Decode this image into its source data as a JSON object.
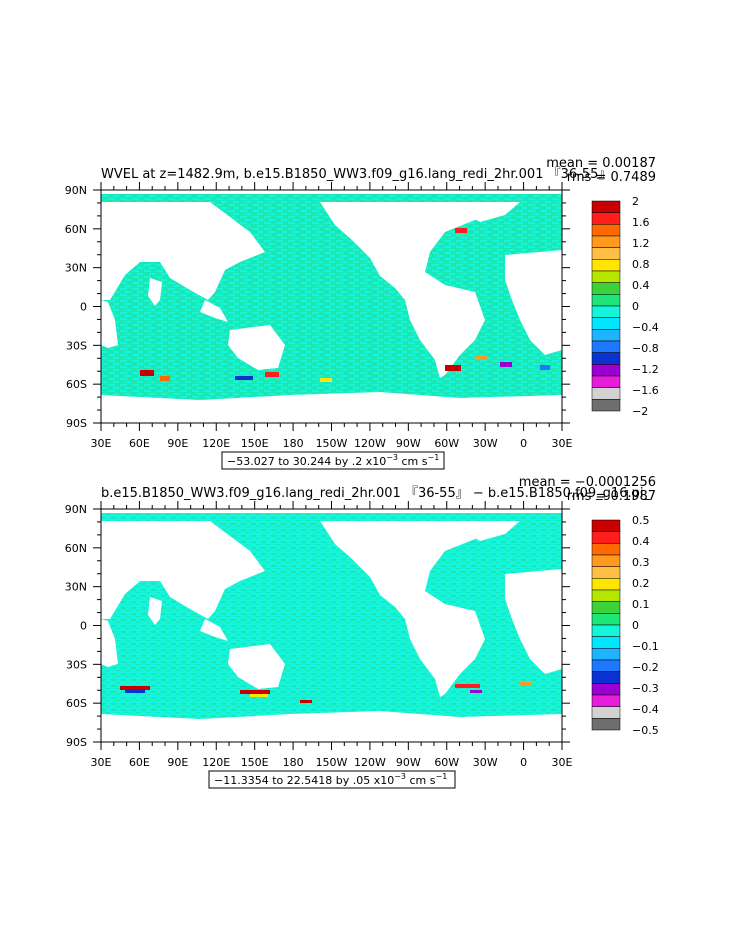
{
  "colors": {
    "land": "#ffffff",
    "ocean_base": "#1de7b0",
    "ocean_alt": "#14f5e0",
    "frame": "#000000"
  },
  "land_icon": "continent-shape",
  "chart_data": [
    {
      "type": "heatmap",
      "title": "WVEL at z=1482.9m, b.e15.B1850_WW3.f09_g16.lang_redi_2hr.001 『36-55』",
      "stats": {
        "mean": "mean = 0.00187",
        "rms": "rms = 0.7489"
      },
      "x_ticks": [
        "30E",
        "60E",
        "90E",
        "120E",
        "150E",
        "180",
        "150W",
        "120W",
        "90W",
        "60W",
        "30W",
        "0",
        "30E"
      ],
      "y_ticks": [
        "90N",
        "60N",
        "30N",
        "0",
        "30S",
        "60S",
        "90S"
      ],
      "xlim": [
        30,
        390
      ],
      "ylim": [
        -90,
        90
      ],
      "range_label": {
        "text": "−53.027 to 30.244 by .2 x10",
        "exp": "−3",
        "unit": " cm s",
        "unit_exp": "−1"
      },
      "colorbar": {
        "labels": [
          "2",
          "1.6",
          "1.2",
          "0.8",
          "0.4",
          "0",
          "−0.4",
          "−0.8",
          "−1.2",
          "−1.6",
          "−2"
        ],
        "colors": [
          "#c80000",
          "#ff1e1e",
          "#ff6a00",
          "#ff9a1e",
          "#ffbf46",
          "#ffe600",
          "#b4e600",
          "#3cd23c",
          "#1ee678",
          "#14f5dc",
          "#00e6ff",
          "#1eb4ff",
          "#1e78ff",
          "#0a32d2",
          "#9b00d2",
          "#e61edc",
          "#d2d2d2",
          "#6e6e6e"
        ]
      }
    },
    {
      "type": "heatmap",
      "title": "b.e15.B1850_WW3.f09_g16.lang_redi_2hr.001 『36-55』 − b.e15.B1850.f09_g16.pi_",
      "stats": {
        "mean": "mean = −0.0001256",
        "rms": "rms = 0.1987"
      },
      "x_ticks": [
        "30E",
        "60E",
        "90E",
        "120E",
        "150E",
        "180",
        "150W",
        "120W",
        "90W",
        "60W",
        "30W",
        "0",
        "30E"
      ],
      "y_ticks": [
        "90N",
        "60N",
        "30N",
        "0",
        "30S",
        "60S",
        "90S"
      ],
      "xlim": [
        30,
        390
      ],
      "ylim": [
        -90,
        90
      ],
      "range_label": {
        "text": "−11.3354 to 22.5418 by .05 x10",
        "exp": "−3",
        "unit": " cm s",
        "unit_exp": "−1"
      },
      "colorbar": {
        "labels": [
          "0.5",
          "0.4",
          "0.3",
          "0.2",
          "0.1",
          "0",
          "−0.1",
          "−0.2",
          "−0.3",
          "−0.4",
          "−0.5"
        ],
        "colors": [
          "#c80000",
          "#ff1e1e",
          "#ff6a00",
          "#ff9a1e",
          "#ffbf46",
          "#ffe600",
          "#b4e600",
          "#3cd23c",
          "#1ee678",
          "#14f5dc",
          "#00e6ff",
          "#1eb4ff",
          "#1e78ff",
          "#0a32d2",
          "#9b00d2",
          "#e61edc",
          "#d2d2d2",
          "#6e6e6e"
        ]
      }
    }
  ]
}
